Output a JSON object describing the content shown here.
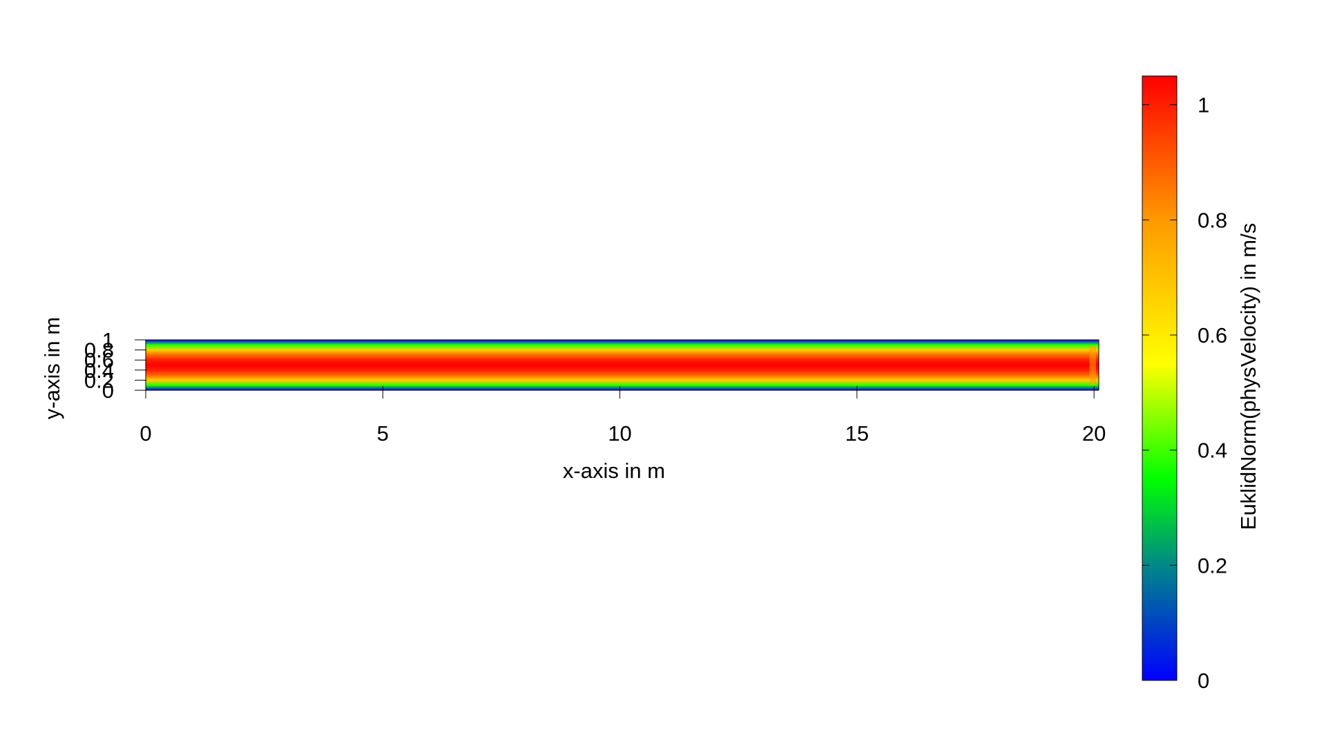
{
  "chart_data": {
    "type": "heatmap",
    "title": "",
    "xlabel": "x-axis in m",
    "ylabel": "y-axis in m",
    "xlim": [
      0,
      20.1
    ],
    "ylim": [
      0,
      1
    ],
    "x_ticks": [
      0,
      5,
      10,
      15,
      20
    ],
    "y_ticks": [
      0,
      0.2,
      0.4,
      0.6,
      0.8,
      1
    ],
    "y_tick_labels": [
      "0",
      "0.2",
      "0.4",
      "0.6",
      "0.8",
      "1"
    ],
    "field": {
      "description_values": "velocity magnitude, approx. parabolic channel profile",
      "max_value": 1.05,
      "profile_y": [
        0,
        0.1,
        0.2,
        0.3,
        0.4,
        0.5,
        0.6,
        0.7,
        0.8,
        0.9,
        1.0
      ],
      "profile_value": [
        0.0,
        0.38,
        0.67,
        0.88,
        1.0,
        1.05,
        1.0,
        0.88,
        0.67,
        0.38,
        0.0
      ]
    },
    "colorbar": {
      "label": "EuklidNorm(physVelocity) in m/s",
      "range": [
        0,
        1.05
      ],
      "ticks": [
        0,
        0.2,
        0.4,
        0.6,
        0.8,
        1
      ],
      "tick_labels": [
        "0",
        "0.2",
        "0.4",
        "0.6",
        "0.8",
        "1"
      ],
      "colormap": [
        {
          "value": 0.0,
          "color": "#0000ff"
        },
        {
          "value": 0.2,
          "color": "#008888"
        },
        {
          "value": 0.35,
          "color": "#00ff00"
        },
        {
          "value": 0.55,
          "color": "#ffff00"
        },
        {
          "value": 0.8,
          "color": "#ff9900"
        },
        {
          "value": 1.05,
          "color": "#ff0000"
        }
      ]
    }
  }
}
